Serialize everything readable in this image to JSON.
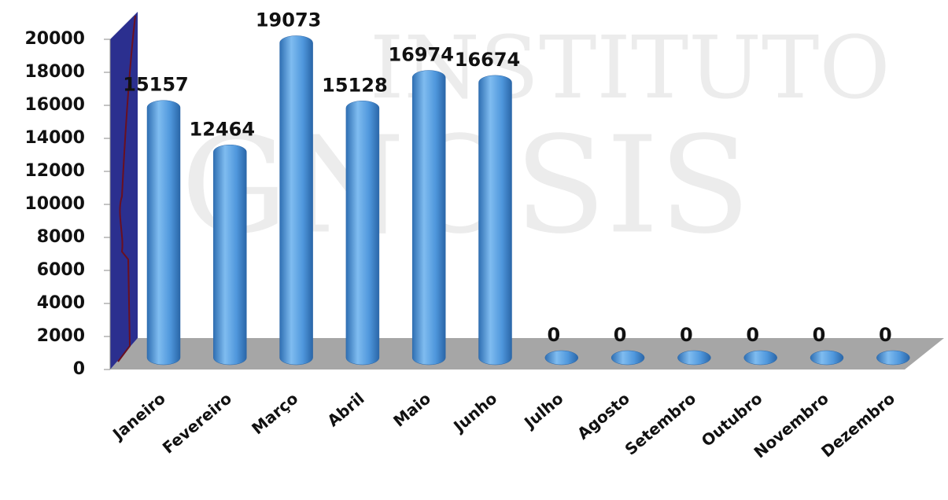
{
  "chart_data": {
    "type": "bar",
    "watermark": [
      "INSTITUTO",
      "GNOSIS"
    ],
    "categories": [
      "Janeiro",
      "Fevereiro",
      "Março",
      "Abril",
      "Maio",
      "Junho",
      "Julho",
      "Agosto",
      "Setembro",
      "Outubro",
      "Novembro",
      "Dezembro"
    ],
    "values": [
      15157,
      12464,
      19073,
      15128,
      16974,
      16674,
      0,
      0,
      0,
      0,
      0,
      0
    ],
    "color": "#4f97dc",
    "ylim": [
      0,
      20000
    ],
    "yticks": [
      0,
      2000,
      4000,
      6000,
      8000,
      10000,
      12000,
      14000,
      16000,
      18000,
      20000
    ]
  }
}
